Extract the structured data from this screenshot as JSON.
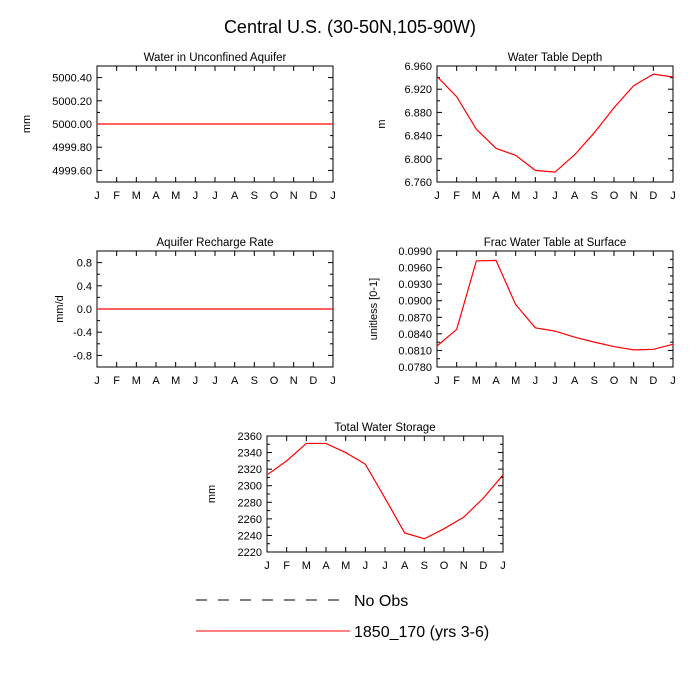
{
  "page": {
    "title": "Central U.S. (30-50N,105-90W)"
  },
  "colors": {
    "series": "#ff0000",
    "obs": "#000000",
    "axis": "#000000"
  },
  "legend": [
    {
      "label": "No Obs",
      "style": "dashed",
      "color": "#000000"
    },
    {
      "label": "1850_170 (yrs 3-6)",
      "style": "solid",
      "color": "#ff0000"
    }
  ],
  "chart_data": [
    {
      "type": "line",
      "title": "Water in Unconfined Aquifer",
      "ylabel": "mm",
      "categories": [
        "J",
        "F",
        "M",
        "A",
        "M",
        "J",
        "J",
        "A",
        "S",
        "O",
        "N",
        "D",
        "J"
      ],
      "ylim": [
        4999.5,
        5000.5
      ],
      "yticks": [
        4999.6,
        4999.8,
        5000.0,
        5000.2,
        5000.4
      ],
      "ytick_labels": [
        "4999.60",
        "4999.80",
        "5000.00",
        "5000.20",
        "5000.40"
      ],
      "series": [
        {
          "name": "1850_170 (yrs 3-6)",
          "values": [
            5000,
            5000,
            5000,
            5000,
            5000,
            5000,
            5000,
            5000,
            5000,
            5000,
            5000,
            5000,
            5000
          ]
        }
      ]
    },
    {
      "type": "line",
      "title": "Water Table Depth",
      "ylabel": "m",
      "categories": [
        "J",
        "F",
        "M",
        "A",
        "M",
        "J",
        "J",
        "A",
        "S",
        "O",
        "N",
        "D",
        "J"
      ],
      "ylim": [
        6.76,
        6.96
      ],
      "yticks": [
        6.76,
        6.8,
        6.84,
        6.88,
        6.92,
        6.96
      ],
      "ytick_labels": [
        "6.760",
        "6.800",
        "6.840",
        "6.880",
        "6.920",
        "6.960"
      ],
      "series": [
        {
          "name": "1850_170 (yrs 3-6)",
          "values": [
            6.942,
            6.907,
            6.851,
            6.818,
            6.806,
            6.78,
            6.777,
            6.807,
            6.845,
            6.888,
            6.926,
            6.946,
            6.941
          ]
        }
      ]
    },
    {
      "type": "line",
      "title": "Aquifer Recharge Rate",
      "ylabel": "mm/d",
      "categories": [
        "J",
        "F",
        "M",
        "A",
        "M",
        "J",
        "J",
        "A",
        "S",
        "O",
        "N",
        "D",
        "J"
      ],
      "ylim": [
        -1.0,
        1.0
      ],
      "yticks": [
        -0.8,
        -0.4,
        0.0,
        0.4,
        0.8
      ],
      "ytick_labels": [
        "-0.8",
        "-0.4",
        "0.0",
        "0.4",
        "0.8"
      ],
      "series": [
        {
          "name": "1850_170 (yrs 3-6)",
          "values": [
            0,
            0,
            0,
            0,
            0,
            0,
            0,
            0,
            0,
            0,
            0,
            0,
            0
          ]
        }
      ]
    },
    {
      "type": "line",
      "title": "Frac Water Table at Surface",
      "ylabel": "unitless [0-1]",
      "categories": [
        "J",
        "F",
        "M",
        "A",
        "M",
        "J",
        "J",
        "A",
        "S",
        "O",
        "N",
        "D",
        "J"
      ],
      "ylim": [
        0.078,
        0.099
      ],
      "yticks": [
        0.078,
        0.081,
        0.084,
        0.087,
        0.09,
        0.093,
        0.096,
        0.099
      ],
      "ytick_labels": [
        "0.0780",
        "0.0810",
        "0.0840",
        "0.0870",
        "0.0900",
        "0.0930",
        "0.0960",
        "0.0990"
      ],
      "series": [
        {
          "name": "1850_170 (yrs 3-6)",
          "values": [
            0.0818,
            0.0848,
            0.0972,
            0.0973,
            0.0893,
            0.0851,
            0.0845,
            0.0834,
            0.0825,
            0.0817,
            0.0811,
            0.0812,
            0.0821
          ]
        }
      ]
    },
    {
      "type": "line",
      "title": "Total Water Storage",
      "ylabel": "mm",
      "categories": [
        "J",
        "F",
        "M",
        "A",
        "M",
        "J",
        "J",
        "A",
        "S",
        "O",
        "N",
        "D",
        "J"
      ],
      "ylim": [
        2220,
        2360
      ],
      "yticks": [
        2220,
        2240,
        2260,
        2280,
        2300,
        2320,
        2340,
        2360
      ],
      "ytick_labels": [
        "2220",
        "2240",
        "2260",
        "2280",
        "2300",
        "2320",
        "2340",
        "2360"
      ],
      "series": [
        {
          "name": "1850_170 (yrs 3-6)",
          "values": [
            2313,
            2330,
            2351,
            2351,
            2340,
            2326,
            2285,
            2243,
            2236,
            2248,
            2262,
            2285,
            2313
          ]
        }
      ]
    }
  ]
}
